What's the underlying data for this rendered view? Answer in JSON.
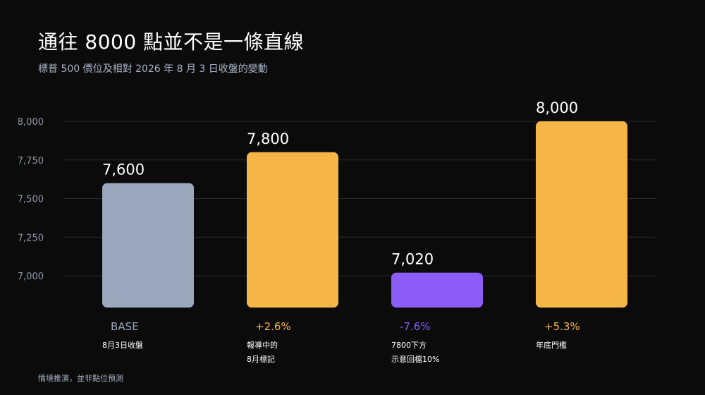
{
  "title": "通往 8000 點並不是一條直線",
  "subtitle": "標普 500 價位及相對 2026 年 8 月 3 日收盤的變動",
  "footnote": "情境推演，並非點位預測",
  "chart_data": {
    "type": "bar",
    "y_ticks": [
      7000,
      7250,
      7500,
      7750,
      8000
    ],
    "y_tick_labels": [
      "7,000",
      "7,250",
      "7,500",
      "7,750",
      "8,000"
    ],
    "ylim": [
      6800,
      8000
    ],
    "grid": true,
    "bars": [
      {
        "value": 7600,
        "value_label": "7,600",
        "change_label": "BASE",
        "note": [
          "8月3日收盤"
        ],
        "color": "#9ba7bc",
        "change_color": "#9ba7bc"
      },
      {
        "value": 7800,
        "value_label": "7,800",
        "change_label": "+2.6%",
        "note": [
          "報導中的",
          "8月標記"
        ],
        "color": "#f5b547",
        "change_color": "#f5b547"
      },
      {
        "value": 7020,
        "value_label": "7,020",
        "change_label": "-7.6%",
        "note": [
          "7800下方",
          "示意回檔10%"
        ],
        "color": "#8b5cf6",
        "change_color": "#8b5cf6"
      },
      {
        "value": 8000,
        "value_label": "8,000",
        "change_label": "+5.3%",
        "note": [
          "年底門檻"
        ],
        "color": "#f5b547",
        "change_color": "#f5b547"
      }
    ]
  }
}
